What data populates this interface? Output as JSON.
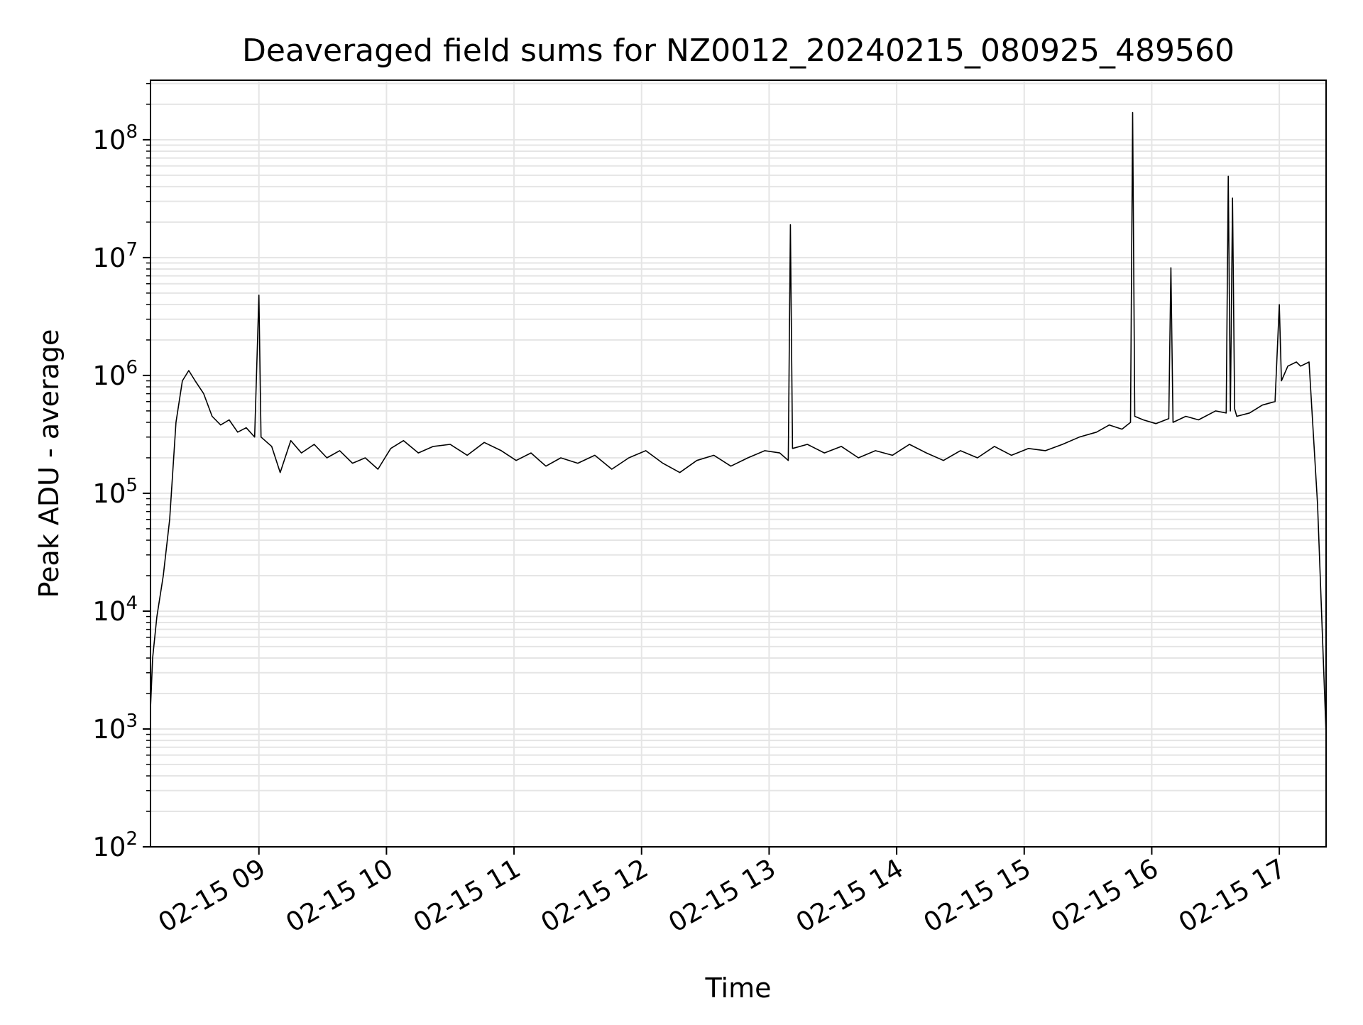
{
  "chart_data": {
    "type": "line",
    "title": "Deaveraged field sums for NZ0012_20240215_080925_489560",
    "xlabel": "Time",
    "ylabel": "Peak ADU - average",
    "yscale": "log",
    "ylim": [
      100,
      320000000
    ],
    "xlim": [
      "2024-02-15 08:09",
      "2024-02-15 17:22"
    ],
    "grid": true,
    "legend": "none",
    "line_color": "#000000",
    "grid_color": "#e5e5e5",
    "x_ticks": [
      {
        "value": "2024-02-15 09:00",
        "label": "02-15 09"
      },
      {
        "value": "2024-02-15 10:00",
        "label": "02-15 10"
      },
      {
        "value": "2024-02-15 11:00",
        "label": "02-15 11"
      },
      {
        "value": "2024-02-15 12:00",
        "label": "02-15 12"
      },
      {
        "value": "2024-02-15 13:00",
        "label": "02-15 13"
      },
      {
        "value": "2024-02-15 14:00",
        "label": "02-15 14"
      },
      {
        "value": "2024-02-15 15:00",
        "label": "02-15 15"
      },
      {
        "value": "2024-02-15 16:00",
        "label": "02-15 16"
      },
      {
        "value": "2024-02-15 17:00",
        "label": "02-15 17"
      }
    ],
    "y_ticks": [
      {
        "value": 100,
        "base": "10",
        "exp": "2"
      },
      {
        "value": 1000,
        "base": "10",
        "exp": "3"
      },
      {
        "value": 10000,
        "base": "10",
        "exp": "4"
      },
      {
        "value": 100000,
        "base": "10",
        "exp": "5"
      },
      {
        "value": 1000000,
        "base": "10",
        "exp": "6"
      },
      {
        "value": 10000000,
        "base": "10",
        "exp": "7"
      },
      {
        "value": 100000000,
        "base": "10",
        "exp": "8"
      }
    ],
    "series": [
      {
        "x": [
          "2024-02-15 08:09",
          "2024-02-15 08:10",
          "2024-02-15 08:12",
          "2024-02-15 08:15",
          "2024-02-15 08:18",
          "2024-02-15 08:21",
          "2024-02-15 08:24",
          "2024-02-15 08:27",
          "2024-02-15 08:30",
          "2024-02-15 08:34",
          "2024-02-15 08:38",
          "2024-02-15 08:42",
          "2024-02-15 08:46",
          "2024-02-15 08:50",
          "2024-02-15 08:54",
          "2024-02-15 08:58",
          "2024-02-15 09:00",
          "2024-02-15 09:01",
          "2024-02-15 09:06",
          "2024-02-15 09:10",
          "2024-02-15 09:15",
          "2024-02-15 09:20",
          "2024-02-15 09:26",
          "2024-02-15 09:32",
          "2024-02-15 09:38",
          "2024-02-15 09:44",
          "2024-02-15 09:50",
          "2024-02-15 09:56",
          "2024-02-15 10:02",
          "2024-02-15 10:08",
          "2024-02-15 10:15",
          "2024-02-15 10:22",
          "2024-02-15 10:30",
          "2024-02-15 10:38",
          "2024-02-15 10:46",
          "2024-02-15 10:54",
          "2024-02-15 11:01",
          "2024-02-15 11:08",
          "2024-02-15 11:15",
          "2024-02-15 11:22",
          "2024-02-15 11:30",
          "2024-02-15 11:38",
          "2024-02-15 11:46",
          "2024-02-15 11:54",
          "2024-02-15 12:02",
          "2024-02-15 12:10",
          "2024-02-15 12:18",
          "2024-02-15 12:26",
          "2024-02-15 12:34",
          "2024-02-15 12:42",
          "2024-02-15 12:50",
          "2024-02-15 12:58",
          "2024-02-15 13:05",
          "2024-02-15 13:09",
          "2024-02-15 13:10",
          "2024-02-15 13:11",
          "2024-02-15 13:18",
          "2024-02-15 13:26",
          "2024-02-15 13:34",
          "2024-02-15 13:42",
          "2024-02-15 13:50",
          "2024-02-15 13:58",
          "2024-02-15 14:06",
          "2024-02-15 14:14",
          "2024-02-15 14:22",
          "2024-02-15 14:30",
          "2024-02-15 14:38",
          "2024-02-15 14:46",
          "2024-02-15 14:54",
          "2024-02-15 15:02",
          "2024-02-15 15:10",
          "2024-02-15 15:18",
          "2024-02-15 15:26",
          "2024-02-15 15:34",
          "2024-02-15 15:40",
          "2024-02-15 15:46",
          "2024-02-15 15:50",
          "2024-02-15 15:51",
          "2024-02-15 15:52",
          "2024-02-15 15:56",
          "2024-02-15 16:02",
          "2024-02-15 16:08",
          "2024-02-15 16:09",
          "2024-02-15 16:10",
          "2024-02-15 16:16",
          "2024-02-15 16:22",
          "2024-02-15 16:30",
          "2024-02-15 16:35",
          "2024-02-15 16:36",
          "2024-02-15 16:37",
          "2024-02-15 16:38",
          "2024-02-15 16:39",
          "2024-02-15 16:40",
          "2024-02-15 16:46",
          "2024-02-15 16:52",
          "2024-02-15 16:58",
          "2024-02-15 17:00",
          "2024-02-15 17:01",
          "2024-02-15 17:04",
          "2024-02-15 17:08",
          "2024-02-15 17:10",
          "2024-02-15 17:14",
          "2024-02-15 17:18",
          "2024-02-15 17:22"
        ],
        "y": [
          1500,
          4000,
          9000,
          20000,
          60000,
          400000,
          900000,
          1100000,
          900000,
          700000,
          450000,
          380000,
          420000,
          330000,
          360000,
          300000,
          4800000,
          300000,
          250000,
          150000,
          280000,
          220000,
          260000,
          200000,
          230000,
          180000,
          200000,
          160000,
          240000,
          280000,
          220000,
          250000,
          260000,
          210000,
          270000,
          230000,
          190000,
          220000,
          170000,
          200000,
          180000,
          210000,
          160000,
          200000,
          230000,
          180000,
          150000,
          190000,
          210000,
          170000,
          200000,
          230000,
          220000,
          190000,
          19000000,
          240000,
          260000,
          220000,
          250000,
          200000,
          230000,
          210000,
          260000,
          220000,
          190000,
          230000,
          200000,
          250000,
          210000,
          240000,
          230000,
          260000,
          300000,
          330000,
          380000,
          350000,
          400000,
          170000000,
          450000,
          420000,
          390000,
          430000,
          8200000,
          400000,
          450000,
          420000,
          500000,
          480000,
          49000000,
          500000,
          32000000,
          520000,
          450000,
          480000,
          560000,
          600000,
          4000000,
          900000,
          1200000,
          1300000,
          1200000,
          1300000,
          80000,
          900
        ]
      }
    ]
  }
}
